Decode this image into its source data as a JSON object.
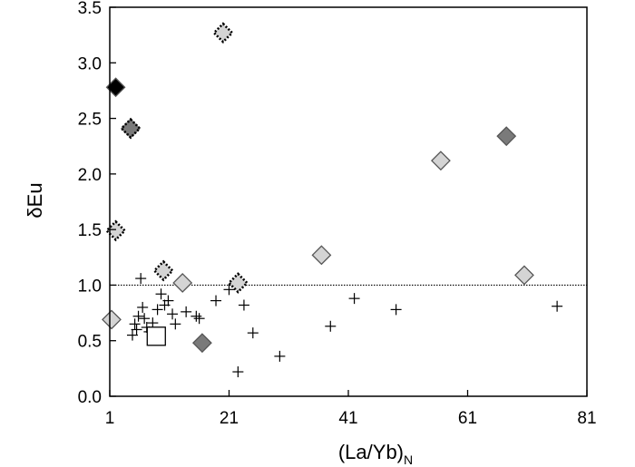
{
  "chart_data": {
    "type": "scatter",
    "xlabel": "(La/Yb)",
    "xlabel_subscript": "N",
    "ylabel": "δEu",
    "xlim": [
      1,
      81
    ],
    "ylim": [
      0,
      3.5
    ],
    "xticks": [
      "1",
      "21",
      "41",
      "61",
      "81"
    ],
    "yticks": [
      "0.0",
      "0.5",
      "1.0",
      "1.5",
      "2.0",
      "2.5",
      "3.0",
      "3.5"
    ],
    "reference_line": {
      "y": 1.0,
      "style": "dotted"
    },
    "colors": {
      "black": "#000000",
      "dark": "#7a7a7a",
      "light": "#d4d4d4",
      "open": "#ffffff"
    },
    "series": [
      {
        "marker": "cross",
        "points": [
          [
            4.8,
            0.55
          ],
          [
            5.2,
            0.65
          ],
          [
            5.5,
            0.6
          ],
          [
            5.8,
            0.72
          ],
          [
            6.2,
            1.06
          ],
          [
            6.5,
            0.8
          ],
          [
            6.8,
            0.7
          ],
          [
            7.2,
            0.62
          ],
          [
            7.6,
            0.58
          ],
          [
            8.2,
            0.66
          ],
          [
            9.0,
            0.78
          ],
          [
            9.6,
            0.92
          ],
          [
            10.2,
            0.82
          ],
          [
            10.8,
            0.86
          ],
          [
            11.5,
            0.74
          ],
          [
            12.0,
            0.65
          ],
          [
            13.8,
            0.76
          ],
          [
            15.5,
            0.72
          ],
          [
            16.0,
            0.7
          ],
          [
            18.8,
            0.86
          ],
          [
            21.0,
            0.96
          ],
          [
            22.5,
            0.22
          ],
          [
            23.5,
            0.82
          ],
          [
            25.0,
            0.57
          ],
          [
            29.5,
            0.36
          ],
          [
            38.0,
            0.63
          ],
          [
            42.0,
            0.88
          ],
          [
            49.0,
            0.78
          ],
          [
            76.0,
            0.81
          ]
        ]
      },
      {
        "marker": "diamond",
        "fill": "black",
        "points": [
          [
            2.0,
            2.78
          ]
        ]
      },
      {
        "marker": "diamond",
        "fill": "dark",
        "points": [
          [
            4.5,
            2.41
          ],
          [
            16.5,
            0.48
          ],
          [
            67.5,
            2.34
          ]
        ]
      },
      {
        "marker": "diamond",
        "fill": "dark",
        "border": "dotted",
        "points": [
          [
            4.5,
            2.41
          ]
        ]
      },
      {
        "marker": "diamond",
        "fill": "light",
        "points": [
          [
            1.3,
            0.69
          ],
          [
            13.2,
            1.02
          ],
          [
            36.5,
            1.27
          ],
          [
            56.5,
            2.12
          ],
          [
            70.5,
            1.09
          ]
        ]
      },
      {
        "marker": "diamond",
        "fill": "light",
        "border": "dotted",
        "points": [
          [
            2.0,
            1.49
          ],
          [
            10.0,
            1.13
          ],
          [
            20.0,
            3.27
          ],
          [
            22.5,
            1.02
          ]
        ]
      },
      {
        "marker": "square",
        "fill": "open",
        "points": [
          [
            8.8,
            0.54
          ]
        ]
      }
    ]
  }
}
